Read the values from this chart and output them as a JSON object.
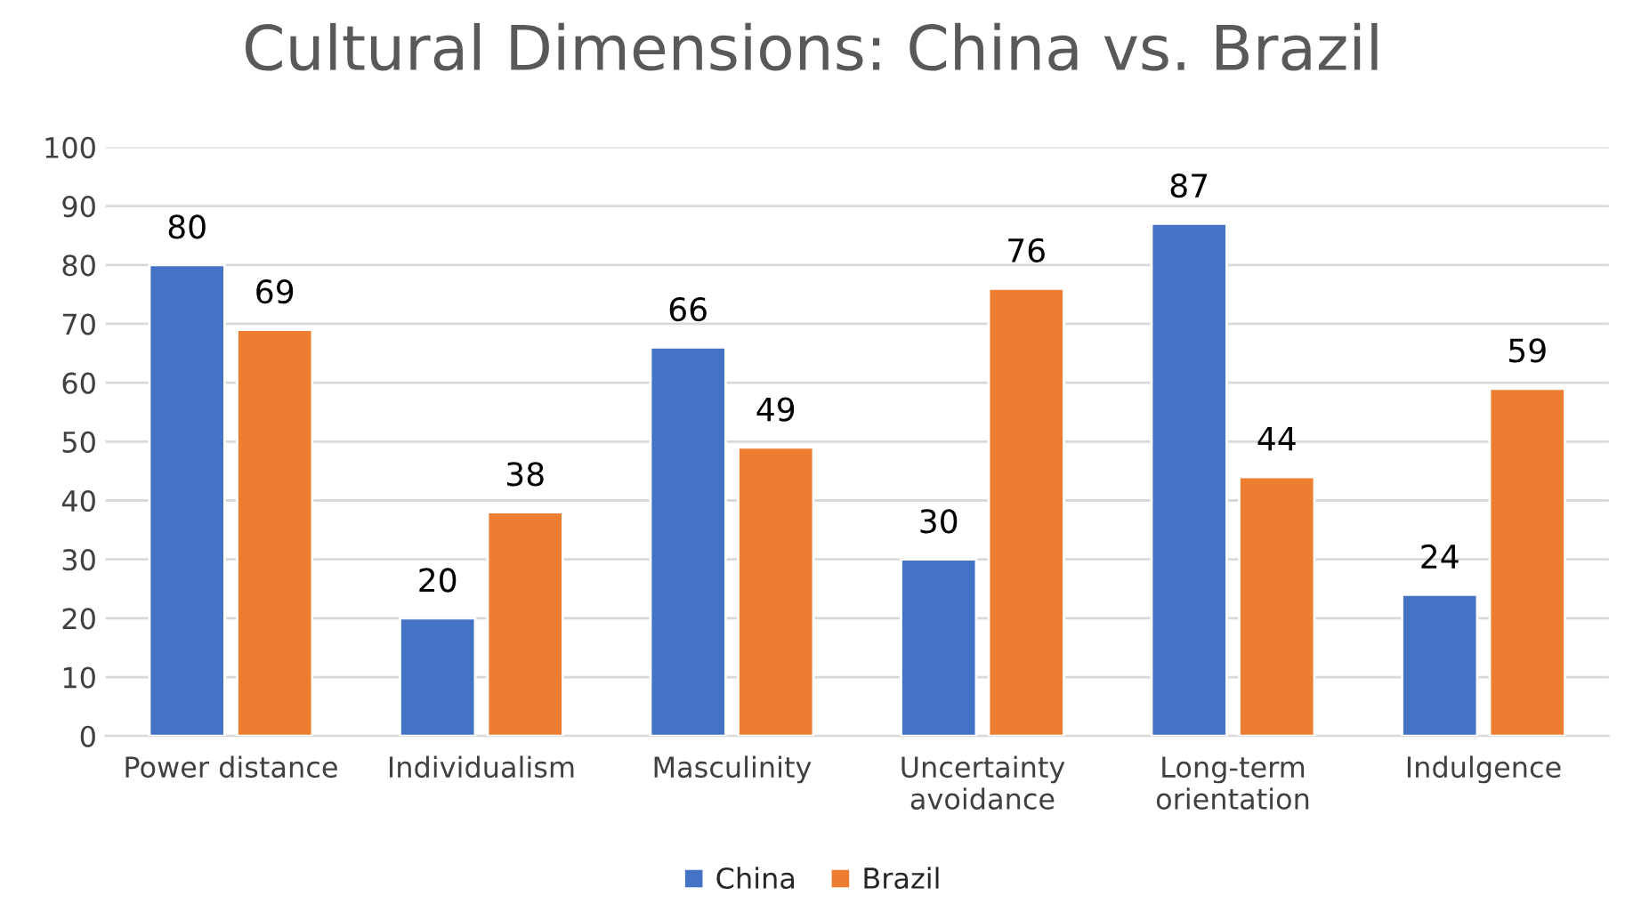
{
  "chart_data": {
    "type": "bar",
    "title": "Cultural Dimensions: China vs. Brazil",
    "categories": [
      "Power distance",
      "Individualism",
      "Masculinity",
      "Uncertainty\navoidance",
      "Long-term\norientation",
      "Indulgence"
    ],
    "series": [
      {
        "name": "China",
        "color": "#4472c4",
        "values": [
          80,
          20,
          66,
          30,
          87,
          24
        ]
      },
      {
        "name": "Brazil",
        "color": "#ed7d31",
        "values": [
          69,
          38,
          49,
          76,
          44,
          59
        ]
      }
    ],
    "ylim": [
      0,
      100
    ],
    "yticks": [
      0,
      10,
      20,
      30,
      40,
      50,
      60,
      70,
      80,
      90,
      100
    ],
    "grid": "y",
    "legend": "bottom",
    "data_labels": true
  }
}
